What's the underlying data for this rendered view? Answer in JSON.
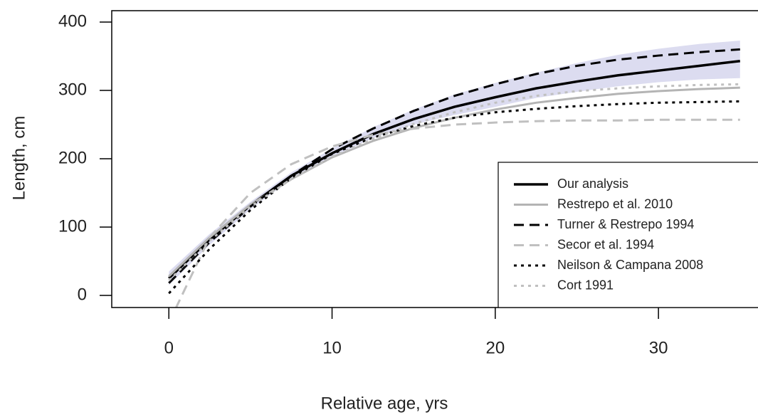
{
  "chart_data": {
    "type": "line",
    "xlabel": "Relative age, yrs",
    "ylabel": "Length, cm",
    "x": [
      0,
      2.5,
      5,
      7.5,
      10,
      12.5,
      15,
      17.5,
      20,
      22.5,
      25,
      27.5,
      30,
      32.5,
      35
    ],
    "xlim": [
      -3.5,
      36.1
    ],
    "ylim": [
      -17.7,
      416.7
    ],
    "xticks": [
      0,
      10,
      20,
      30
    ],
    "yticks": [
      0,
      100,
      200,
      300,
      400
    ],
    "band": {
      "color": "#dcdcf0",
      "upper": [
        35,
        90,
        137,
        180,
        215,
        246,
        272,
        294,
        311,
        326,
        340,
        352,
        361,
        368,
        373
      ],
      "lower": [
        15,
        74,
        126,
        170,
        203,
        230,
        250,
        264,
        276,
        289,
        298,
        306,
        312,
        316,
        318
      ]
    },
    "series": [
      {
        "name": "Our analysis",
        "color": "#000000",
        "style": "solid",
        "width": 3.5,
        "values": [
          25,
          82,
          132,
          175,
          208,
          236,
          258,
          276,
          290,
          303,
          313,
          322,
          329,
          336,
          343
        ]
      },
      {
        "name": "Restrepo et al. 2010",
        "color": "#b4b4b4",
        "style": "solid",
        "width": 3,
        "values": [
          28,
          85,
          133,
          170,
          202,
          226,
          245,
          260,
          272,
          282,
          289,
          295,
          299,
          302,
          304
        ]
      },
      {
        "name": "Turner & Restrepo 1994",
        "color": "#000000",
        "style": "dashed",
        "width": 3,
        "values": [
          18,
          78,
          130,
          175,
          214,
          244,
          270,
          292,
          309,
          324,
          336,
          345,
          351,
          356,
          360
        ]
      },
      {
        "name": "Secor et al. 1994",
        "color": "#c0c0c0",
        "style": "dashed",
        "width": 3,
        "values": [
          -40,
          85,
          150,
          192,
          218,
          235,
          244,
          250,
          253,
          255,
          256,
          256,
          257,
          257,
          257
        ]
      },
      {
        "name": "Neilson & Campana 2008",
        "color": "#000000",
        "style": "dotted",
        "width": 3,
        "values": [
          3,
          68,
          125,
          172,
          207,
          231,
          248,
          260,
          268,
          273,
          277,
          280,
          282,
          283,
          284
        ]
      },
      {
        "name": "Cort 1991",
        "color": "#c0c0c0",
        "style": "dotted",
        "width": 3,
        "values": [
          22,
          80,
          130,
          170,
          203,
          229,
          251,
          268,
          282,
          292,
          299,
          303,
          306,
          308,
          309
        ]
      }
    ]
  }
}
